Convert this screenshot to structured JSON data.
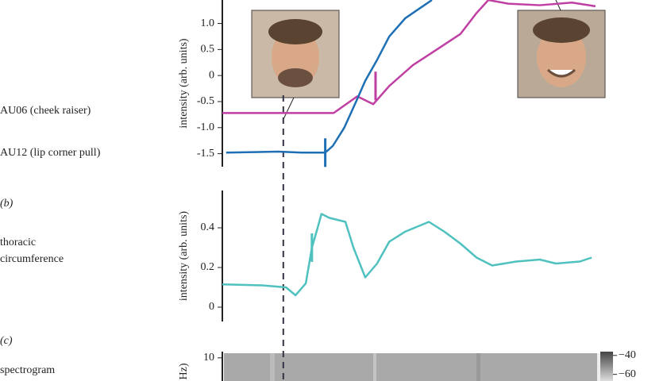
{
  "chart_data": [
    {
      "type": "line",
      "ylabel": "intensity (arb. units)",
      "xlim": [
        0,
        100
      ],
      "ylim": [
        -1.75,
        1.45
      ],
      "yticks": [
        -1.5,
        {
          "value": -1.0,
          "label": "-1.0"
        },
        -0.5,
        0,
        0.5,
        {
          "value": 1.0,
          "label": "1.0"
        }
      ],
      "event_x": 16,
      "series": [
        {
          "name": "AU06 (cheek raiser)",
          "color": "#c03fa3",
          "onset": 40.2,
          "x": [
            0,
            29.2,
            35.4,
            39.6,
            43.8,
            50,
            56.3,
            62.5,
            66.7,
            69.8,
            75,
            83.3,
            91.7,
            97.9
          ],
          "values": [
            -0.72,
            -0.72,
            -0.4,
            -0.55,
            -0.2,
            0.2,
            0.5,
            0.8,
            1.2,
            1.45,
            1.38,
            1.35,
            1.4,
            1.33
          ]
        },
        {
          "name": "AU12 (lip corner pull)",
          "color": "#1f6fb5",
          "onset": 27,
          "x": [
            1,
            8.3,
            14.6,
            20.8,
            27,
            29,
            32,
            35.4,
            37.5,
            40.6,
            43.8,
            48,
            52,
            55
          ],
          "values": [
            -1.48,
            -1.47,
            -1.46,
            -1.48,
            -1.48,
            -1.35,
            -1.0,
            -0.45,
            -0.1,
            0.3,
            0.75,
            1.1,
            1.3,
            1.45
          ]
        }
      ]
    },
    {
      "type": "line",
      "label": "(b)",
      "ylabel": "intensity (arb. units)",
      "xlim": [
        0,
        100
      ],
      "ylim": [
        -0.072,
        0.588
      ],
      "yticks": [
        0,
        0.2,
        0.4
      ],
      "series": [
        {
          "name": "thoracic circumference",
          "color": "#4fc1bf",
          "onset": 23.5,
          "x": [
            0,
            10.4,
            16.7,
            19.2,
            21.9,
            23.5,
            25,
            26,
            28.1,
            30.2,
            32.3,
            34.4,
            37.5,
            40.6,
            43.8,
            47.9,
            54.2,
            58.3,
            62.5,
            66.7,
            70.8,
            77.1,
            83.3,
            87.5,
            93.8,
            96.9
          ],
          "values": [
            0.115,
            0.11,
            0.1,
            0.06,
            0.12,
            0.3,
            0.4,
            0.47,
            0.45,
            0.44,
            0.43,
            0.3,
            0.15,
            0.22,
            0.33,
            0.38,
            0.43,
            0.38,
            0.32,
            0.25,
            0.21,
            0.23,
            0.24,
            0.22,
            0.23,
            0.25
          ]
        }
      ]
    },
    {
      "type": "spectrogram",
      "label": "(c)",
      "name": "spectrogram",
      "ylabel": "Hz)",
      "xlim": [
        0,
        100
      ],
      "ylim": [
        7.5,
        10.5
      ],
      "yticks": [
        10
      ],
      "clim": [
        -67,
        -36
      ],
      "colorbar_ticks": [
        {
          "value": -40,
          "label": "−40"
        },
        {
          "value": -60,
          "label": "−60"
        }
      ]
    }
  ]
}
